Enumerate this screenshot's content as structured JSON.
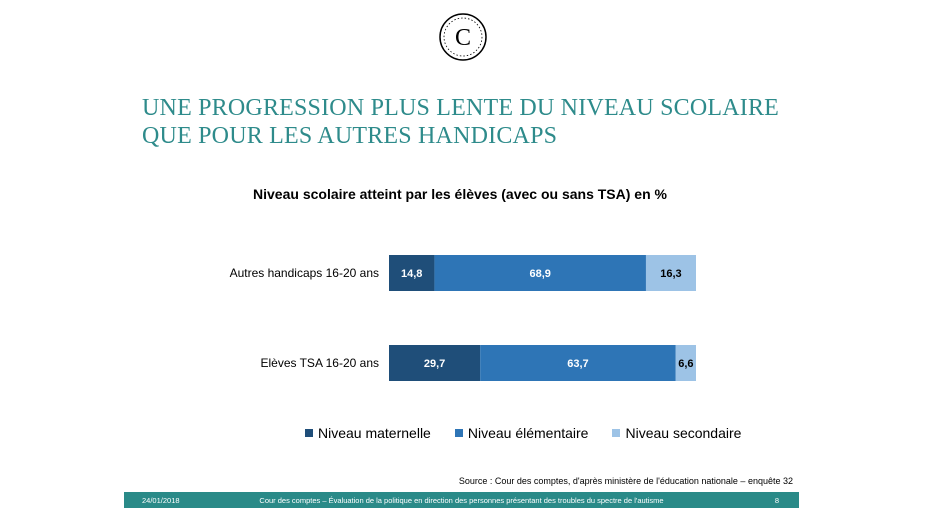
{
  "logo": {
    "icon": "cour-des-comptes-logo-icon",
    "letter": "C"
  },
  "slide_title": {
    "line1": "UNE PROGRESSION PLUS LENTE DU NIVEAU SCOLAIRE",
    "line2": "QUE POUR LES AUTRES HANDICAPS"
  },
  "colors": {
    "title": "#2e8b8b",
    "maternelle": "#1f4e79",
    "elementaire": "#2e75b6",
    "secondaire": "#9dc3e6",
    "footer": "#2a8a88"
  },
  "chart_data": {
    "type": "bar",
    "orientation": "horizontal",
    "stacked": true,
    "title": "Niveau scolaire atteint par les élèves (avec ou sans TSA) en %",
    "categories": [
      "Autres handicaps 16-20 ans",
      "Elèves TSA 16-20 ans"
    ],
    "series": [
      {
        "name": "Niveau maternelle",
        "values": [
          14.8,
          29.7
        ],
        "labels": [
          "14,8",
          "29,7"
        ],
        "color": "#1f4e79"
      },
      {
        "name": "Niveau élémentaire",
        "values": [
          68.9,
          63.7
        ],
        "labels": [
          "68,9",
          "63,7"
        ],
        "color": "#2e75b6"
      },
      {
        "name": "Niveau secondaire",
        "values": [
          16.3,
          6.6
        ],
        "labels": [
          "16,3",
          "6,6"
        ],
        "color": "#9dc3e6"
      }
    ],
    "xlim": [
      0,
      100
    ],
    "grid": false,
    "legend": "bottom"
  },
  "source": "Source : Cour des comptes, d'après ministère de l'éducation nationale – enquête 32",
  "footer": {
    "date": "24/01/2018",
    "text": "Cour des comptes – Évaluation de la politique en direction des personnes présentant des troubles du spectre de l'autisme",
    "page": "8"
  }
}
